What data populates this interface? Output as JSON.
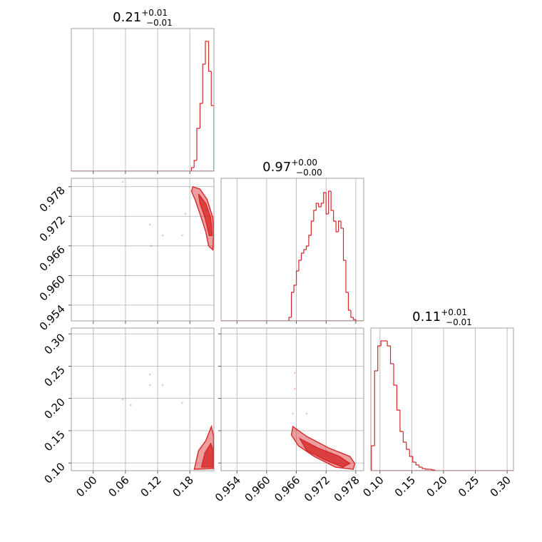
{
  "chart_data": [
    {
      "type": "histogram",
      "color": "#d62728",
      "title": {
        "value": "0.21",
        "upper": "+0.01",
        "lower": "−0.01"
      },
      "bins": [
        0.183,
        0.188,
        0.193,
        0.199,
        0.204,
        0.209,
        0.215,
        0.22,
        0.225
      ],
      "counts": [
        5,
        15,
        60,
        95,
        150,
        182,
        140,
        92
      ],
      "xlim": [
        -0.041,
        0.225
      ],
      "ylim": [
        0,
        200
      ],
      "xticks": [
        {
          "value": 0,
          "label": "0.00"
        },
        0.06,
        0.12,
        0.18
      ],
      "grid": true
    },
    {
      "type": "scatter",
      "color": "#d62728",
      "x": [
        0.1057,
        0.1297,
        0.1083,
        0.1657,
        0.1723,
        0.055
      ],
      "y": [
        0.9703,
        0.9681,
        0.966,
        0.9681,
        0.9725,
        0.979
      ],
      "contours": [
        {
          "x": [
            0.1857,
            0.199,
            0.2123,
            0.223,
            0.2243,
            0.223,
            0.215,
            0.2097,
            0.199,
            0.1897,
            0.183
          ],
          "y": [
            0.978,
            0.9775,
            0.9754,
            0.9717,
            0.9681,
            0.9652,
            0.966,
            0.9689,
            0.9725,
            0.9754,
            0.9771
          ]
        },
        {
          "x": [
            0.1963,
            0.2097,
            0.219,
            0.2217,
            0.2163,
            0.2083,
            0.199
          ],
          "y": [
            0.9765,
            0.9746,
            0.9717,
            0.9681,
            0.9681,
            0.9717,
            0.9746
          ]
        }
      ],
      "xlim": [
        -0.041,
        0.225
      ],
      "ylim": [
        0.9508,
        0.9797
      ],
      "xticks": [
        {
          "value": 0,
          "label": "0.00"
        },
        0.06,
        0.12,
        0.18
      ],
      "yticks": [
        0.954,
        {
          "value": 0.96,
          "label": "0.960"
        },
        0.966,
        0.972,
        0.978
      ],
      "grid": true
    },
    {
      "type": "histogram",
      "color": "#d62728",
      "title": {
        "value": "0.97",
        "upper": "+0.00",
        "lower": "−0.00"
      },
      "bins": [
        0.9645,
        0.965,
        0.9655,
        0.966,
        0.9665,
        0.967,
        0.9675,
        0.968,
        0.9685,
        0.969,
        0.9695,
        0.97,
        0.9705,
        0.971,
        0.9715,
        0.972,
        0.9725,
        0.973,
        0.9735,
        0.974,
        0.9745,
        0.975,
        0.9755,
        0.976,
        0.9765,
        0.977,
        0.9775,
        0.978
      ],
      "counts": [
        5,
        40,
        50,
        70,
        85,
        95,
        100,
        105,
        120,
        140,
        155,
        165,
        160,
        165,
        180,
        150,
        182,
        155,
        140,
        125,
        140,
        130,
        85,
        40,
        15,
        5,
        2
      ],
      "xlim": [
        0.9508,
        0.9796
      ],
      "ylim": [
        0,
        200
      ],
      "xticks": [
        0.954,
        {
          "value": 0.96,
          "label": "0.960"
        },
        0.966,
        0.972,
        0.978
      ],
      "grid": true
    },
    {
      "type": "scatter",
      "color": "#d62728",
      "x": [
        0.1057,
        0.1297,
        0.1057,
        0.055,
        0.0697,
        0.1657
      ],
      "y": [
        0.2372,
        0.2206,
        0.2206,
        0.1985,
        0.1897,
        0.193
      ],
      "contours": [
        {
          "x": [
            0.1883,
            0.1963,
            0.2097,
            0.2203,
            0.2243,
            0.2243
          ],
          "y": [
            0.0902,
            0.119,
            0.1344,
            0.1565,
            0.141,
            0.0913
          ]
        },
        {
          "x": [
            0.2017,
            0.2083,
            0.219,
            0.223,
            0.223
          ],
          "y": [
            0.0935,
            0.1156,
            0.13,
            0.1212,
            0.0935
          ]
        }
      ],
      "xlim": [
        -0.041,
        0.225
      ],
      "ylim": [
        0.088,
        0.309
      ],
      "xticks": [
        {
          "value": 0,
          "label": "0.00"
        },
        0.06,
        0.12,
        0.18
      ],
      "yticks": [
        {
          "value": 0.1,
          "label": "0.10"
        },
        0.15,
        {
          "value": 0.2,
          "label": "0.20"
        },
        0.25,
        {
          "value": 0.3,
          "label": "0.30"
        }
      ],
      "grid": true
    },
    {
      "type": "scatter",
      "color": "#d62728",
      "x": [
        0.9657,
        0.9657,
        0.9681,
        0.9653
      ],
      "y": [
        0.2394,
        0.215,
        0.1764,
        0.1764
      ],
      "contours": [
        {
          "x": [
            0.9653,
            0.9681,
            0.9725,
            0.9768,
            0.9778,
            0.9775,
            0.9739,
            0.9696,
            0.9664,
            0.965
          ],
          "y": [
            0.1565,
            0.141,
            0.1234,
            0.1101,
            0.0991,
            0.0902,
            0.0935,
            0.1101,
            0.1267,
            0.1433
          ]
        },
        {
          "x": [
            0.9667,
            0.9703,
            0.9747,
            0.9768,
            0.9754,
            0.9718,
            0.9681
          ],
          "y": [
            0.1377,
            0.1234,
            0.1101,
            0.0991,
            0.0935,
            0.1046,
            0.119
          ]
        }
      ],
      "xlim": [
        0.9508,
        0.9796
      ],
      "ylim": [
        0.088,
        0.309
      ],
      "xticks": [
        0.954,
        {
          "value": 0.96,
          "label": "0.960"
        },
        0.966,
        0.972,
        0.978
      ],
      "yticks": [
        {
          "value": 0.1,
          "label": "0.10"
        },
        0.15,
        {
          "value": 0.2,
          "label": "0.20"
        },
        0.25,
        {
          "value": 0.3,
          "label": "0.30"
        }
      ],
      "grid": true
    },
    {
      "type": "histogram",
      "color": "#d62728",
      "title": {
        "value": "0.11",
        "upper": "+0.01",
        "lower": "−0.01"
      },
      "bins": [
        0.0865,
        0.0915,
        0.0965,
        0.1015,
        0.1065,
        0.1115,
        0.1165,
        0.1215,
        0.1265,
        0.1315,
        0.1365,
        0.1415,
        0.1465,
        0.1515,
        0.1565,
        0.1615,
        0.1665,
        0.1715,
        0.1765,
        0.1815,
        0.1865
      ],
      "counts": [
        35,
        140,
        175,
        182,
        182,
        175,
        150,
        120,
        85,
        55,
        40,
        30,
        20,
        12,
        8,
        5,
        3,
        2,
        2,
        1
      ],
      "xlim": [
        0.0856,
        0.31
      ],
      "ylim": [
        0,
        200
      ],
      "xticks": [
        {
          "value": 0.1,
          "label": "0.10"
        },
        0.15,
        {
          "value": 0.2,
          "label": "0.20"
        },
        0.25,
        {
          "value": 0.3,
          "label": "0.30"
        }
      ],
      "grid": true
    }
  ]
}
